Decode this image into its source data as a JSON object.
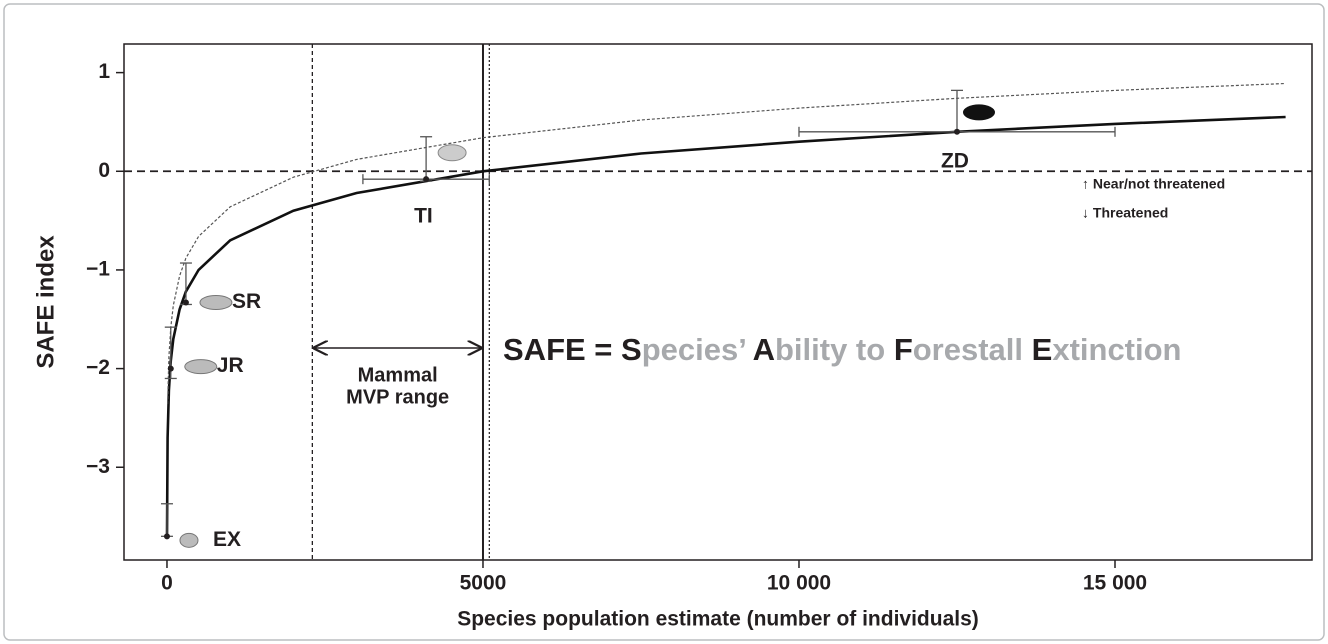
{
  "chart_data": {
    "type": "line",
    "xlabel": "Species population estimate (number of individuals)",
    "ylabel": "SAFE index",
    "xlim": [
      -680,
      18117
    ],
    "ylim": [
      -3.94,
      1.29
    ],
    "xticks": [
      0,
      5000,
      {
        "value": 10000,
        "label": "10 000"
      },
      {
        "value": 15000,
        "label": "15 000"
      }
    ],
    "yticks": [
      1,
      0,
      {
        "value": -1,
        "label": "−1"
      },
      {
        "value": -2,
        "label": "−2"
      },
      {
        "value": -3,
        "label": "−3"
      }
    ],
    "series": [
      {
        "color": "#111111",
        "dash": "none",
        "width": 2.6,
        "x": [
          1,
          10,
          30,
          60,
          100,
          200,
          300,
          500,
          1000,
          2000,
          3000,
          5000,
          7500,
          10000,
          12500,
          15000,
          17700
        ],
        "values": [
          -3.7,
          -2.7,
          -2.22,
          -1.92,
          -1.7,
          -1.4,
          -1.22,
          -1.0,
          -0.7,
          -0.4,
          -0.22,
          0.0,
          0.18,
          0.3,
          0.4,
          0.48,
          0.55
        ]
      },
      {
        "color": "#555555",
        "dash": "3 2",
        "width": 1.2,
        "x": [
          10,
          30,
          60,
          100,
          200,
          300,
          500,
          1000,
          2000,
          3000,
          5000,
          7500,
          10000,
          12500,
          15000,
          17700
        ],
        "values": [
          -2.36,
          -1.88,
          -1.58,
          -1.36,
          -1.06,
          -0.88,
          -0.66,
          -0.36,
          -0.06,
          0.12,
          0.34,
          0.52,
          0.64,
          0.74,
          0.82,
          0.89
        ]
      }
    ],
    "points": [
      {
        "label": "EX",
        "x": 0,
        "y": -3.7,
        "ylow": -3.7,
        "yhigh": -3.37
      },
      {
        "label": "JR",
        "x": 60,
        "y": -2.0,
        "ylow": -2.1,
        "yhigh": -1.58
      },
      {
        "label": "SR",
        "x": 300,
        "y": -1.33,
        "ylow": -1.35,
        "yhigh": -0.93
      },
      {
        "label": "TI",
        "x": 4100,
        "y": -0.08,
        "ylow": -0.1,
        "yhigh": 0.35,
        "xlow": 3100,
        "xhigh": 5100
      },
      {
        "label": "ZD",
        "x": 12500,
        "y": 0.4,
        "ylow": 0.4,
        "yhigh": 0.82,
        "xlow": 10000,
        "xhigh": 15000
      }
    ],
    "vlines": [
      2300,
      5000,
      5100
    ],
    "hline": 0,
    "range_label": [
      "Mammal",
      "MVP range"
    ],
    "above_label": "↑ Near/not threatened",
    "below_label": "↓ Threatened",
    "headline": [
      "SAFE = ",
      "S",
      "pecies’ ",
      "A",
      "bility to ",
      "F",
      "orestall ",
      "E",
      "xtinction"
    ],
    "headline_colors": [
      "#231f20",
      "#231f20",
      "#a7a9ac",
      "#231f20",
      "#a7a9ac",
      "#231f20",
      "#a7a9ac",
      "#231f20",
      "#a7a9ac"
    ]
  }
}
